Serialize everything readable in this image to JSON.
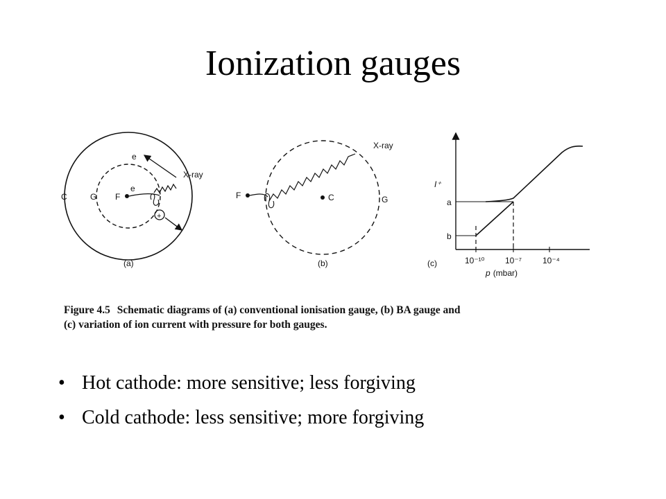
{
  "slide": {
    "title": "Ionization gauges"
  },
  "figure": {
    "panel_a": {
      "label_c": "C",
      "label_g": "G",
      "label_f": "F",
      "label_e_outer": "e",
      "label_e_inner": "e",
      "label_xray": "X-ray",
      "label_plus": "+",
      "caption": "(a)"
    },
    "panel_b": {
      "label_f": "F",
      "label_c": "C",
      "label_g": "G",
      "label_xray": "X-ray",
      "caption": "(b)"
    },
    "panel_c": {
      "ylabel": "I⁺",
      "label_a": "a",
      "label_b": "b",
      "tick_labels": [
        "10⁻¹⁰",
        "10⁻⁷",
        "10⁻⁴"
      ],
      "xlabel_symbol": "p",
      "xlabel_unit": "(mbar)",
      "caption": "(c)"
    },
    "caption": {
      "figure_label": "Figure 4.5",
      "line1": "Schematic diagrams of (a) conventional ionisation  gauge, (b) BA gauge and",
      "line2": "(c) variation of ion current with pressure for both gauges."
    }
  },
  "bullets": [
    "Hot cathode: more sensitive; less forgiving",
    "Cold cathode: less sensitive; more forgiving"
  ]
}
